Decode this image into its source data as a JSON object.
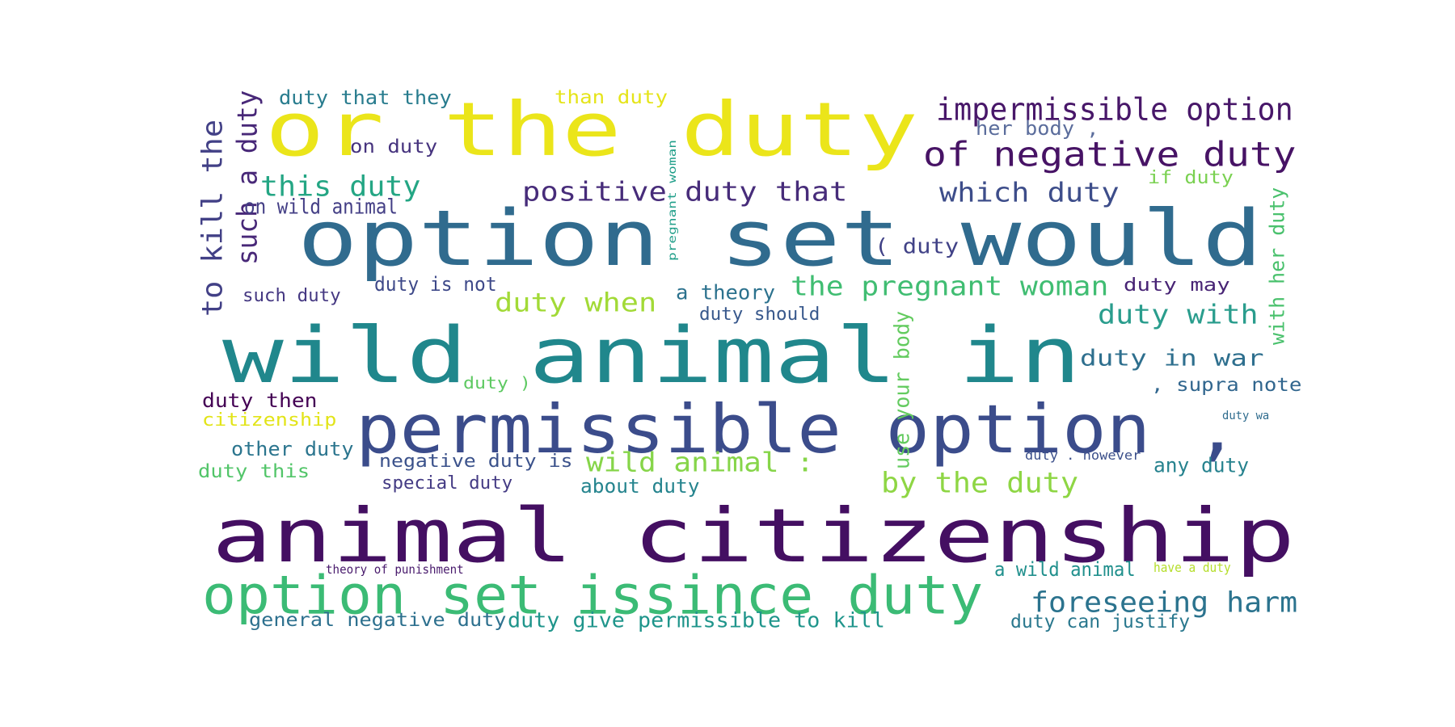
{
  "words": [
    {
      "text": "animal citizenship",
      "color": "#440f62"
    },
    {
      "text": "wild animal in",
      "color": "#20878c"
    },
    {
      "text": "option set would",
      "color": "#306b8e"
    },
    {
      "text": "or the duty",
      "color": "#ebe51a"
    },
    {
      "text": "permissible option ,",
      "color": "#3b4c8b"
    },
    {
      "text": "option set issince duty",
      "color": "#3bbb75"
    },
    {
      "text": "of negative duty",
      "color": "#471365"
    },
    {
      "text": "impermissible option",
      "color": "#481769"
    },
    {
      "text": "positive duty that",
      "color": "#472c7a"
    },
    {
      "text": "the pregnant woman",
      "color": "#40bd72"
    },
    {
      "text": "which duty",
      "color": "#3d4d8a"
    },
    {
      "text": "this duty",
      "color": "#24a684"
    },
    {
      "text": "duty with",
      "color": "#2a9d8d"
    },
    {
      "text": "duty in war",
      "color": "#2e6f8e"
    },
    {
      "text": "foreseeing harm",
      "color": "#2b738e"
    },
    {
      "text": "by the duty",
      "color": "#8ed644"
    },
    {
      "text": "wild animal :",
      "color": "#86d549"
    },
    {
      "text": "duty when",
      "color": "#a2da37"
    },
    {
      "text": "to kill the",
      "color": "#424086"
    },
    {
      "text": "such a duty",
      "color": "#482878"
    },
    {
      "text": "duty that they",
      "color": "#287c8e"
    },
    {
      "text": "than duty",
      "color": "#e5e419"
    },
    {
      "text": "on duty",
      "color": "#46337e"
    },
    {
      "text": "her body ,",
      "color": "#5b6d9c"
    },
    {
      "text": "if duty",
      "color": "#7ad151"
    },
    {
      "text": "on wild animal",
      "color": "#433e85"
    },
    {
      "text": "( duty",
      "color": "#414287"
    },
    {
      "text": "duty is not",
      "color": "#3e4989"
    },
    {
      "text": "such duty",
      "color": "#453882"
    },
    {
      "text": "a theory",
      "color": "#2c728e"
    },
    {
      "text": "duty should",
      "color": "#38588c"
    },
    {
      "text": "duty may",
      "color": "#482475"
    },
    {
      "text": "with her duty",
      "color": "#4ac16d"
    },
    {
      "text": "use your body",
      "color": "#63cb5f"
    },
    {
      "text": "pregnant woman",
      "color": "#1f9e89"
    },
    {
      "text": "duty )",
      "color": "#5ec962"
    },
    {
      "text": ", supra note",
      "color": "#31668e"
    },
    {
      "text": "duty then",
      "color": "#440154"
    },
    {
      "text": "citizenship",
      "color": "#e2e418"
    },
    {
      "text": "other duty",
      "color": "#2b758e"
    },
    {
      "text": "negative duty is",
      "color": "#3b528b"
    },
    {
      "text": "duty this",
      "color": "#52c569"
    },
    {
      "text": "special duty",
      "color": "#443b84"
    },
    {
      "text": "about duty",
      "color": "#25848e"
    },
    {
      "text": "any duty",
      "color": "#26828e"
    },
    {
      "text": "duty wa",
      "color": "#2f6c8e"
    },
    {
      "text": "duty . however",
      "color": "#3c508b"
    },
    {
      "text": "theory of punishment",
      "color": "#481a6c"
    },
    {
      "text": "a wild animal",
      "color": "#21908d"
    },
    {
      "text": "have a duty",
      "color": "#b5de2b"
    },
    {
      "text": "general negative duty",
      "color": "#2d708e"
    },
    {
      "text": "duty give permissible to kill",
      "color": "#1f958b"
    },
    {
      "text": "duty can justify",
      "color": "#2a788e"
    }
  ]
}
